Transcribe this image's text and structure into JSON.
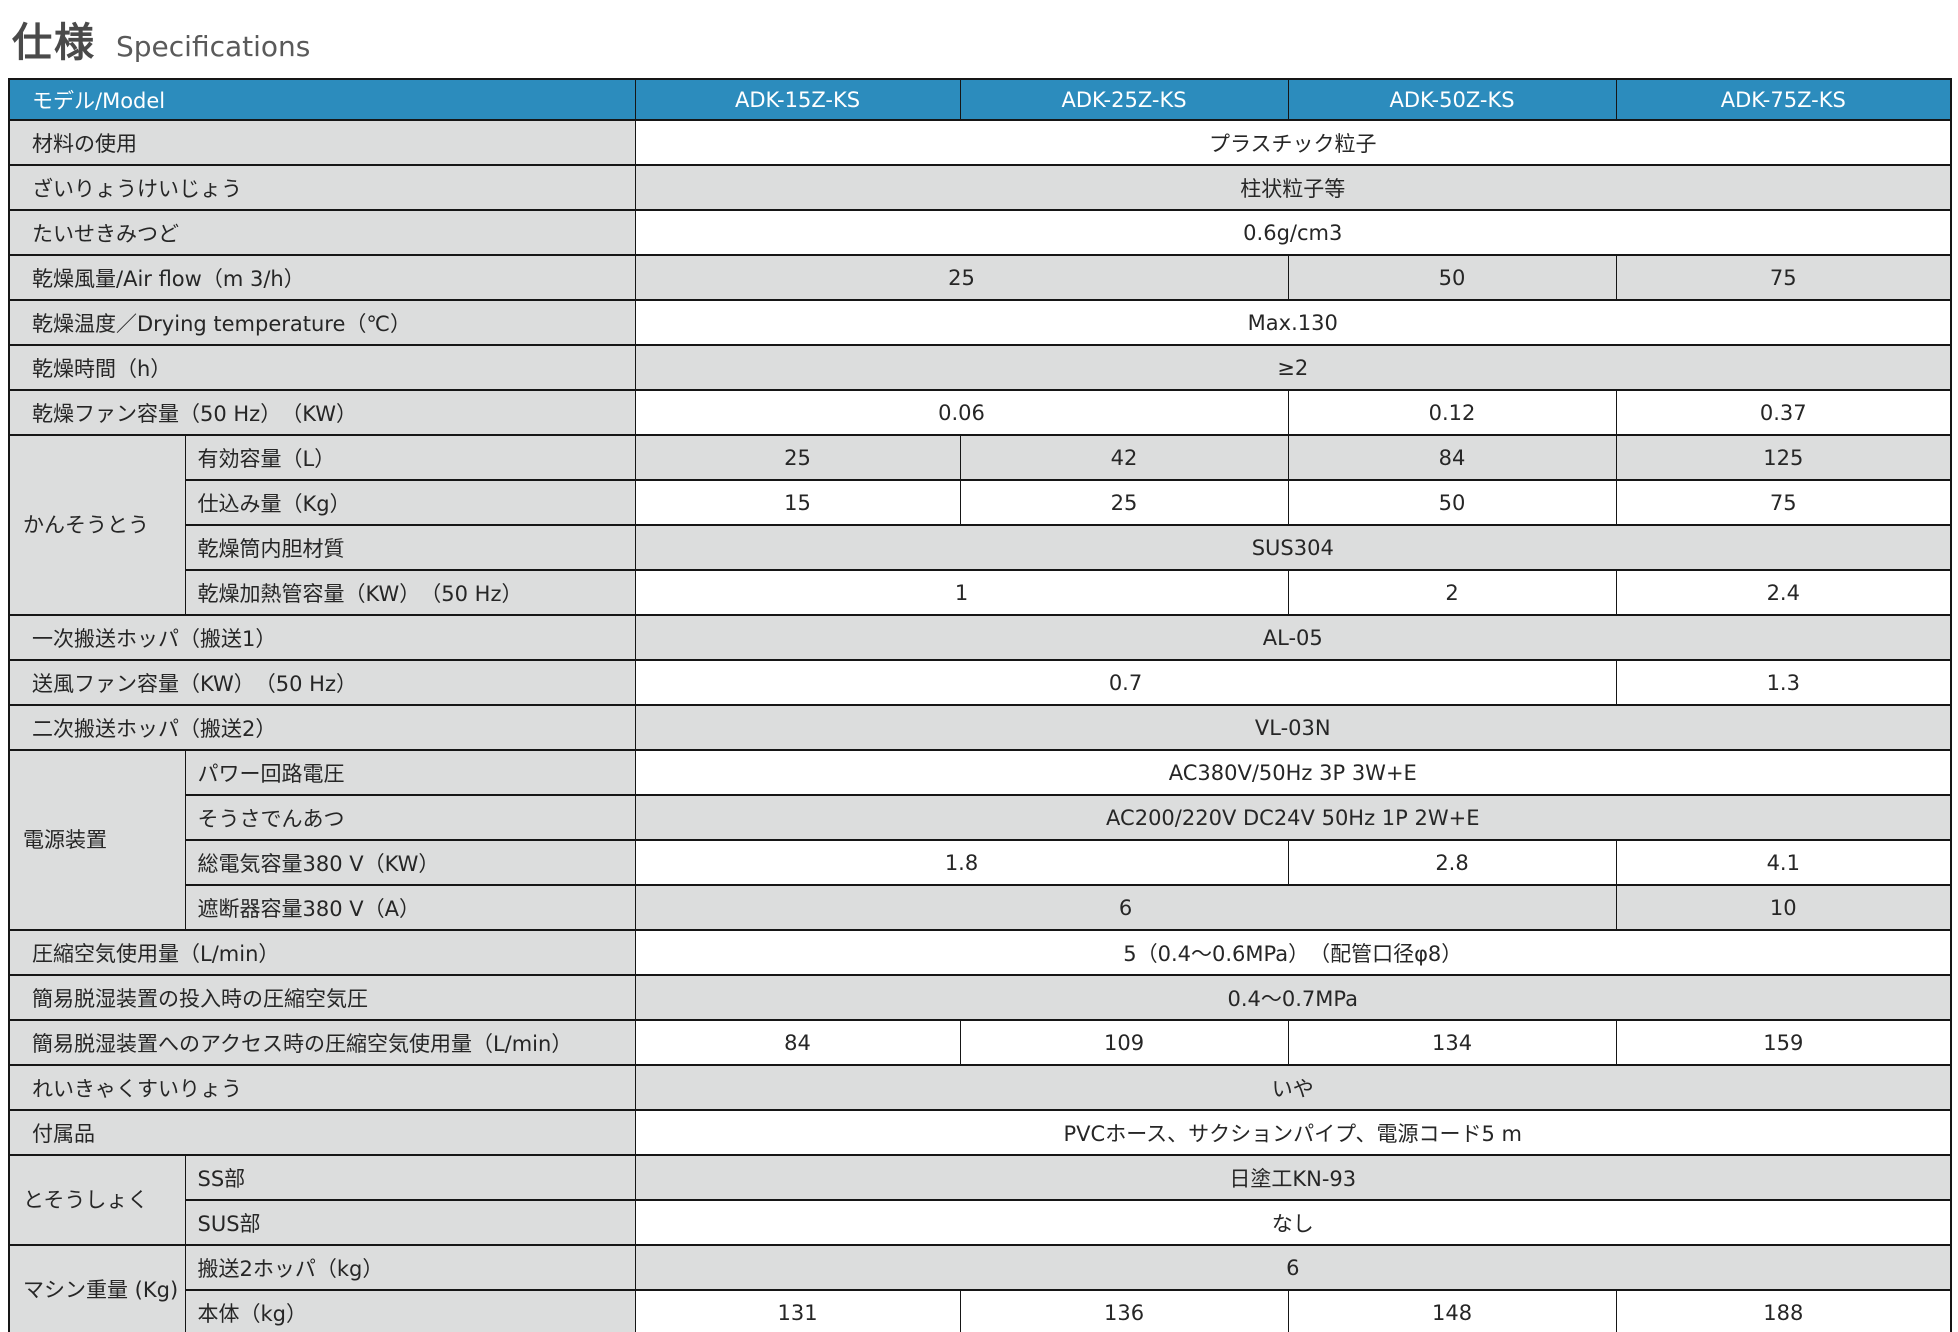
{
  "page": {
    "title_ja": "仕様",
    "title_en": "Specifications"
  },
  "colors": {
    "header_bg": "#2c8cbd",
    "stripe_gray": "#dcdddd",
    "border": "#161616",
    "header_text": "#ffffff"
  },
  "table": {
    "header": {
      "model_label": "モデル/Model",
      "models": [
        "ADK-15Z-KS",
        "ADK-25Z-KS",
        "ADK-50Z-KS",
        "ADK-75Z-KS"
      ]
    },
    "rows": [
      {
        "label": "材料の使用",
        "cells": [
          {
            "t": "プラスチック粒子",
            "s": 4
          }
        ]
      },
      {
        "label": "ざいりょうけいじょう",
        "cells": [
          {
            "t": "柱状粒子等",
            "s": 4
          }
        ]
      },
      {
        "label": "たいせきみつど",
        "cells": [
          {
            "t": "0.6g/cm3",
            "s": 4
          }
        ]
      },
      {
        "label": "乾燥風量/Air flow（m 3/h）",
        "cells": [
          {
            "t": "25",
            "s": 2
          },
          {
            "t": "50",
            "s": 1
          },
          {
            "t": "75",
            "s": 1
          }
        ]
      },
      {
        "label": "乾燥温度／Drying temperature（℃）",
        "cells": [
          {
            "t": "Max.130",
            "s": 4
          }
        ]
      },
      {
        "label": "乾燥時間（h）",
        "cells": [
          {
            "t": "≥2",
            "s": 4
          }
        ]
      },
      {
        "label": "乾燥ファン容量（50 Hz）　（KW）",
        "cells": [
          {
            "t": "0.06",
            "s": 2
          },
          {
            "t": "0.12",
            "s": 1
          },
          {
            "t": "0.37",
            "s": 1
          }
        ]
      },
      {
        "group": "かんそうとう",
        "group_span": 4,
        "label": "有効容量（L）",
        "cells": [
          {
            "t": "25",
            "s": 1
          },
          {
            "t": "42",
            "s": 1
          },
          {
            "t": "84",
            "s": 1
          },
          {
            "t": "125",
            "s": 1
          }
        ]
      },
      {
        "label": "仕込み量（Kg）",
        "cells": [
          {
            "t": "15",
            "s": 1
          },
          {
            "t": "25",
            "s": 1
          },
          {
            "t": "50",
            "s": 1
          },
          {
            "t": "75",
            "s": 1
          }
        ]
      },
      {
        "label": "乾燥筒内胆材質",
        "cells": [
          {
            "t": "SUS304",
            "s": 4
          }
        ]
      },
      {
        "label": "乾燥加熱管容量（KW）　（50 Hz）",
        "cells": [
          {
            "t": "1",
            "s": 2
          },
          {
            "t": "2",
            "s": 1
          },
          {
            "t": "2.4",
            "s": 1
          }
        ]
      },
      {
        "label": "一次搬送ホッパ（搬送1）",
        "cells": [
          {
            "t": "AL-05",
            "s": 4
          }
        ]
      },
      {
        "label": "送風ファン容量（KW）　（50 Hz）",
        "cells": [
          {
            "t": "0.7",
            "s": 3
          },
          {
            "t": "1.3",
            "s": 1
          }
        ]
      },
      {
        "label": "二次搬送ホッパ（搬送2）",
        "cells": [
          {
            "t": "VL-03N",
            "s": 4
          }
        ]
      },
      {
        "group": "電源装置",
        "group_span": 4,
        "label": "パワー回路電圧",
        "cells": [
          {
            "t": "AC380V/50Hz 3P 3W+E",
            "s": 4
          }
        ]
      },
      {
        "label": "そうさでんあつ",
        "cells": [
          {
            "t": "AC200/220V DC24V 50Hz 1P 2W+E",
            "s": 4
          }
        ]
      },
      {
        "label": "総電気容量380 V（KW）",
        "cells": [
          {
            "t": "1.8",
            "s": 2
          },
          {
            "t": "2.8",
            "s": 1
          },
          {
            "t": "4.1",
            "s": 1
          }
        ]
      },
      {
        "label": "遮断器容量380 V（A）",
        "cells": [
          {
            "t": "6",
            "s": 3
          },
          {
            "t": "10",
            "s": 1
          }
        ]
      },
      {
        "label": "圧縮空気使用量（L/min）",
        "cells": [
          {
            "t": "5（0.4～0.6MPa）　（配管口径φ8）",
            "s": 4
          }
        ]
      },
      {
        "label": "簡易脱湿装置の投入時の圧縮空気圧",
        "cells": [
          {
            "t": "0.4～0.7MPa",
            "s": 4
          }
        ]
      },
      {
        "label": "簡易脱湿装置へのアクセス時の圧縮空気使用量（L/min）",
        "cells": [
          {
            "t": "84",
            "s": 1
          },
          {
            "t": "109",
            "s": 1
          },
          {
            "t": "134",
            "s": 1
          },
          {
            "t": "159",
            "s": 1
          }
        ]
      },
      {
        "label": "れいきゃくすいりょう",
        "cells": [
          {
            "t": "いや",
            "s": 4
          }
        ]
      },
      {
        "label": "付属品",
        "cells": [
          {
            "t": "PVCホース、サクションパイプ、電源コード5 m",
            "s": 4
          }
        ]
      },
      {
        "group": "とそうしょく",
        "group_span": 2,
        "label": "SS部",
        "cells": [
          {
            "t": "日塗工KN-93",
            "s": 4
          }
        ]
      },
      {
        "label": "SUS部",
        "cells": [
          {
            "t": "なし",
            "s": 4
          }
        ]
      },
      {
        "group": "マシン重量 (Kg)",
        "group_span": 2,
        "label": "搬送2ホッパ（kg）",
        "cells": [
          {
            "t": "6",
            "s": 4
          }
        ]
      },
      {
        "label": "本体（kg）",
        "cells": [
          {
            "t": "131",
            "s": 1
          },
          {
            "t": "136",
            "s": 1
          },
          {
            "t": "148",
            "s": 1
          },
          {
            "t": "188",
            "s": 1
          }
        ]
      }
    ]
  }
}
